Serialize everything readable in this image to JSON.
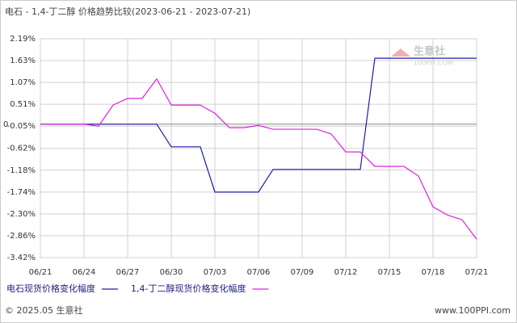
{
  "chart_data": {
    "type": "line",
    "title": "电石 - 1,4-丁二醇 价格趋势比较(2023-06-21 - 2023-07-21)",
    "categories": [
      "06/21",
      null,
      null,
      "06/24",
      null,
      null,
      "06/27",
      null,
      null,
      "06/30",
      null,
      null,
      "07/03",
      null,
      null,
      "07/06",
      null,
      null,
      "07/09",
      null,
      null,
      "07/12",
      null,
      null,
      "07/15",
      null,
      null,
      "07/18",
      null,
      null,
      "07/21"
    ],
    "series": [
      {
        "name": "电石现货价格变化幅度",
        "color": "#1c1ca8",
        "values": [
          0,
          0,
          0,
          0,
          0,
          0,
          0,
          0,
          0,
          -0.58,
          -0.58,
          -0.58,
          -1.74,
          -1.74,
          -1.74,
          -1.74,
          -1.16,
          -1.16,
          -1.16,
          -1.16,
          -1.16,
          -1.16,
          -1.16,
          1.69,
          1.69,
          1.69,
          1.69,
          1.69,
          1.69,
          1.69,
          1.69
        ]
      },
      {
        "name": "1,4-丁二醇现货价格变化幅度",
        "color": "#e020e0",
        "values": [
          0,
          0,
          0,
          0,
          -0.05,
          0.49,
          0.66,
          0.66,
          1.16,
          0.49,
          0.49,
          0.49,
          0.28,
          -0.09,
          -0.09,
          -0.03,
          -0.13,
          -0.13,
          -0.13,
          -0.13,
          -0.25,
          -0.71,
          -0.71,
          -1.08,
          -1.08,
          -1.08,
          -1.33,
          -2.12,
          -2.33,
          -2.45,
          -2.95
        ]
      }
    ],
    "ylim": [
      -3.42,
      2.19
    ],
    "yticks": [
      {
        "value": 2.19,
        "label": "2.19%"
      },
      {
        "value": 1.63,
        "label": "1.63%"
      },
      {
        "value": 1.07,
        "label": "1.07%"
      },
      {
        "value": 0.51,
        "label": "0.51%"
      },
      {
        "value": -0.05,
        "label": "-0.05%"
      },
      {
        "value": -0.62,
        "label": "-0.62%"
      },
      {
        "value": -1.18,
        "label": "-1.18%"
      },
      {
        "value": -1.74,
        "label": "-1.74%"
      },
      {
        "value": -2.3,
        "label": "-2.30%"
      },
      {
        "value": -2.86,
        "label": "-2.86%"
      },
      {
        "value": -3.42,
        "label": "-3.42%"
      }
    ],
    "zero_line": {
      "value": 0,
      "label": "0"
    },
    "grid": true,
    "watermark": {
      "name": "生意社",
      "url": "100PPI.COM"
    },
    "footer_left": "© 2025.05 生意社",
    "footer_right": "www.100PPI.com"
  }
}
